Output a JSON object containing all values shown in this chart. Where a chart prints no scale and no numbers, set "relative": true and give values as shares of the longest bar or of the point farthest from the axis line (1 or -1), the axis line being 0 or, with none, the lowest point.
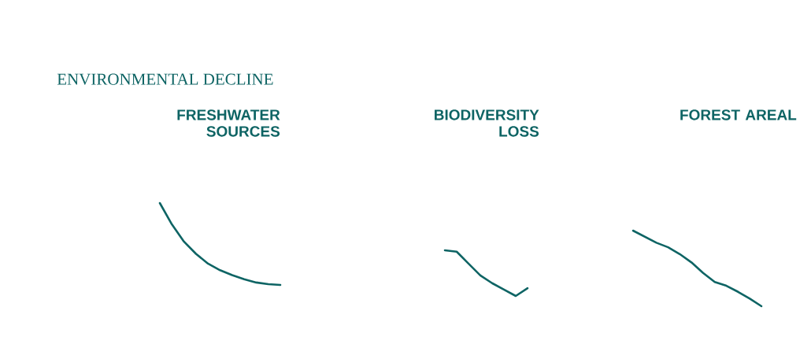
{
  "chart_data": [
    {
      "type": "line",
      "title": "FRESHWATER SOURCES",
      "annotations": [
        "ENVIRONMENTAL DECLINE"
      ],
      "relative": true,
      "marker": "none",
      "line_style": "solid",
      "categories": [
        null,
        null,
        null,
        null,
        null,
        null,
        null,
        null,
        null,
        null,
        null
      ],
      "series": [
        {
          "color": "#0e6464",
          "values": [
            1,
            0.74,
            0.53,
            0.38,
            0.26,
            0.18,
            0.12,
            0.07,
            0.03,
            0.01,
            0
          ]
        }
      ]
    },
    {
      "type": "line",
      "title": "BIODIVERSITY LOSS",
      "relative": true,
      "marker": "none",
      "line_style": "solid",
      "categories": [
        null,
        null,
        null,
        null,
        null,
        null,
        null,
        null
      ],
      "series": [
        {
          "color": "#0e6464",
          "values": [
            1,
            0.97,
            0.71,
            0.45,
            0.28,
            0.14,
            0,
            0.17
          ]
        }
      ]
    },
    {
      "type": "line",
      "title": "FOREST AREAL",
      "relative": true,
      "marker": "none",
      "line_style": "solid",
      "categories": [
        null,
        null,
        null,
        null,
        null,
        null,
        null,
        null,
        null,
        null,
        null,
        null
      ],
      "series": [
        {
          "color": "#0e6464",
          "values": [
            1,
            0.92,
            0.84,
            0.78,
            0.69,
            0.58,
            0.44,
            0.32,
            0.27,
            0.19,
            0.1,
            0
          ]
        }
      ]
    }
  ]
}
